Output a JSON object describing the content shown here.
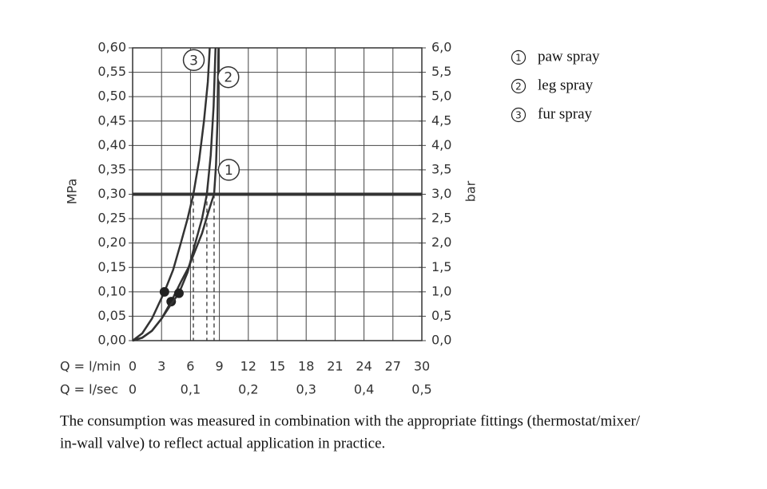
{
  "chart_data": {
    "type": "line",
    "y_label": "MPa",
    "y2_label": "bar",
    "x_label": "Q = l/min",
    "x2_label": "Q = l/sec",
    "xlim": [
      0,
      30
    ],
    "xticks": [
      0,
      3,
      6,
      9,
      12,
      15,
      18,
      21,
      24,
      27,
      30
    ],
    "x2lim": [
      0,
      0.5
    ],
    "x2ticks": [
      0,
      {
        "value": 0.1,
        "label": "0,1"
      },
      {
        "value": 0.2,
        "label": "0,2"
      },
      {
        "value": 0.3,
        "label": "0,3"
      },
      {
        "value": 0.4,
        "label": "0,4"
      },
      {
        "value": 0.5,
        "label": "0,5"
      }
    ],
    "ylim": [
      0,
      0.6
    ],
    "yticks": [
      {
        "value": 0,
        "label": "0,00"
      },
      {
        "value": 0.05,
        "label": "0,05"
      },
      {
        "value": 0.1,
        "label": "0,10"
      },
      {
        "value": 0.15,
        "label": "0,15"
      },
      {
        "value": 0.2,
        "label": "0,20"
      },
      {
        "value": 0.25,
        "label": "0,25"
      },
      {
        "value": 0.3,
        "label": "0,30"
      },
      {
        "value": 0.35,
        "label": "0,35"
      },
      {
        "value": 0.4,
        "label": "0,40"
      },
      {
        "value": 0.45,
        "label": "0,45"
      },
      {
        "value": 0.5,
        "label": "0,50"
      },
      {
        "value": 0.55,
        "label": "0,55"
      },
      {
        "value": 0.6,
        "label": "0,60"
      }
    ],
    "y2lim": [
      0,
      6
    ],
    "y2ticks": [
      {
        "value": 0,
        "label": "0,0"
      },
      {
        "value": 0.5,
        "label": "0,5"
      },
      {
        "value": 1,
        "label": "1,0"
      },
      {
        "value": 1.5,
        "label": "1,5"
      },
      {
        "value": 2,
        "label": "2,0"
      },
      {
        "value": 2.5,
        "label": "2,5"
      },
      {
        "value": 3,
        "label": "3,0"
      },
      {
        "value": 3.5,
        "label": "3,5"
      },
      {
        "value": 4,
        "label": "4,0"
      },
      {
        "value": 4.5,
        "label": "4,5"
      },
      {
        "value": 5,
        "label": "5,0"
      },
      {
        "value": 5.5,
        "label": "5,5"
      },
      {
        "value": 6,
        "label": "6,0"
      }
    ],
    "grid": true,
    "reference_line": 0.3,
    "series": [
      {
        "name": "paw spray",
        "marker_label": "1",
        "color": "#333333",
        "x": [
          0,
          1,
          2,
          3,
          4,
          5,
          5.8,
          6.6,
          7.2,
          7.8,
          8.2,
          8.45,
          8.65,
          8.8,
          8.9
        ],
        "values": [
          0,
          0.006,
          0.02,
          0.045,
          0.08,
          0.12,
          0.15,
          0.19,
          0.22,
          0.26,
          0.285,
          0.3,
          0.36,
          0.45,
          0.6
        ],
        "dot": [
          4,
          0.08
        ],
        "rated_flow": 8.45
      },
      {
        "name": "leg spray",
        "marker_label": "2",
        "color": "#333333",
        "x": [
          0,
          1,
          2,
          3,
          4,
          4.8,
          5.7,
          6.5,
          7.2,
          7.7,
          8.1,
          8.4,
          8.6
        ],
        "values": [
          0,
          0.006,
          0.02,
          0.045,
          0.075,
          0.097,
          0.14,
          0.2,
          0.25,
          0.3,
          0.38,
          0.48,
          0.6
        ],
        "dot": [
          4.8,
          0.097
        ],
        "rated_flow": 7.7
      },
      {
        "name": "fur spray",
        "marker_label": "3",
        "color": "#333333",
        "x": [
          0,
          1,
          2,
          3.3,
          4.2,
          5,
          5.7,
          6.3,
          6.9,
          7.4,
          7.8,
          8
        ],
        "values": [
          0,
          0.015,
          0.045,
          0.1,
          0.145,
          0.2,
          0.25,
          0.3,
          0.37,
          0.45,
          0.53,
          0.6
        ],
        "dot": [
          3.3,
          0.1
        ],
        "rated_flow": 6.3
      }
    ],
    "footnote": [
      "The consumption was measured in combination with the appropriate fittings (thermostat/mixer/",
      "in-wall valve) to reflect actual application in practice."
    ]
  }
}
